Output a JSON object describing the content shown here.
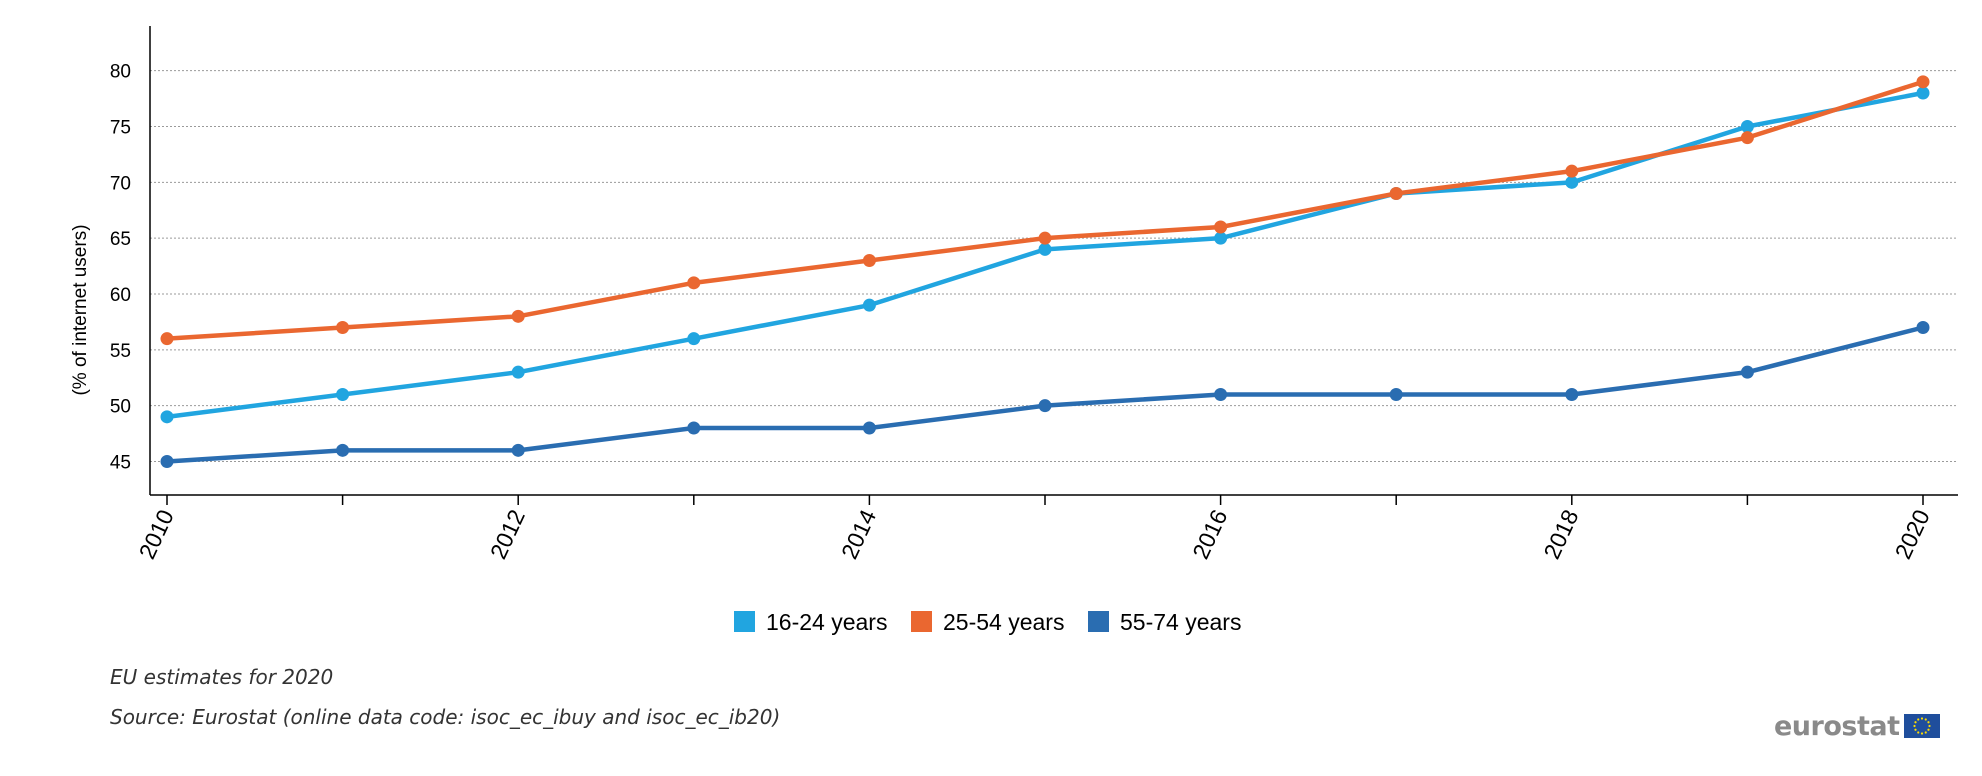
{
  "chart_data": {
    "type": "line",
    "title": "",
    "xlabel": "",
    "ylabel": "(% of internet users)",
    "x": [
      2010,
      2011,
      2012,
      2013,
      2014,
      2015,
      2016,
      2017,
      2018,
      2019,
      2020
    ],
    "x_tick_labels": [
      "2010",
      "2012",
      "2014",
      "2016",
      "2018",
      "2020"
    ],
    "ylim": [
      42,
      84
    ],
    "y_ticks": [
      45,
      50,
      55,
      60,
      65,
      70,
      75,
      80
    ],
    "grid": "horizontal dotted",
    "legend_position": "bottom-center",
    "series": [
      {
        "name": "16-24 years",
        "color": "#21a5e0",
        "values": [
          49,
          51,
          53,
          56,
          59,
          64,
          65,
          69,
          70,
          75,
          78
        ]
      },
      {
        "name": "25-54 years",
        "color": "#ea6730",
        "values": [
          56,
          57,
          58,
          61,
          63,
          65,
          66,
          69,
          71,
          74,
          79
        ]
      },
      {
        "name": "55-74 years",
        "color": "#2a6db1",
        "values": [
          45,
          46,
          46,
          48,
          48,
          50,
          51,
          51,
          51,
          53,
          57
        ]
      }
    ]
  },
  "footer": {
    "note": "EU estimates for 2020",
    "source": "Source: Eurostat (online data code: isoc_ec_ibuy and isoc_ec_ib20)",
    "brand": "eurostat"
  }
}
